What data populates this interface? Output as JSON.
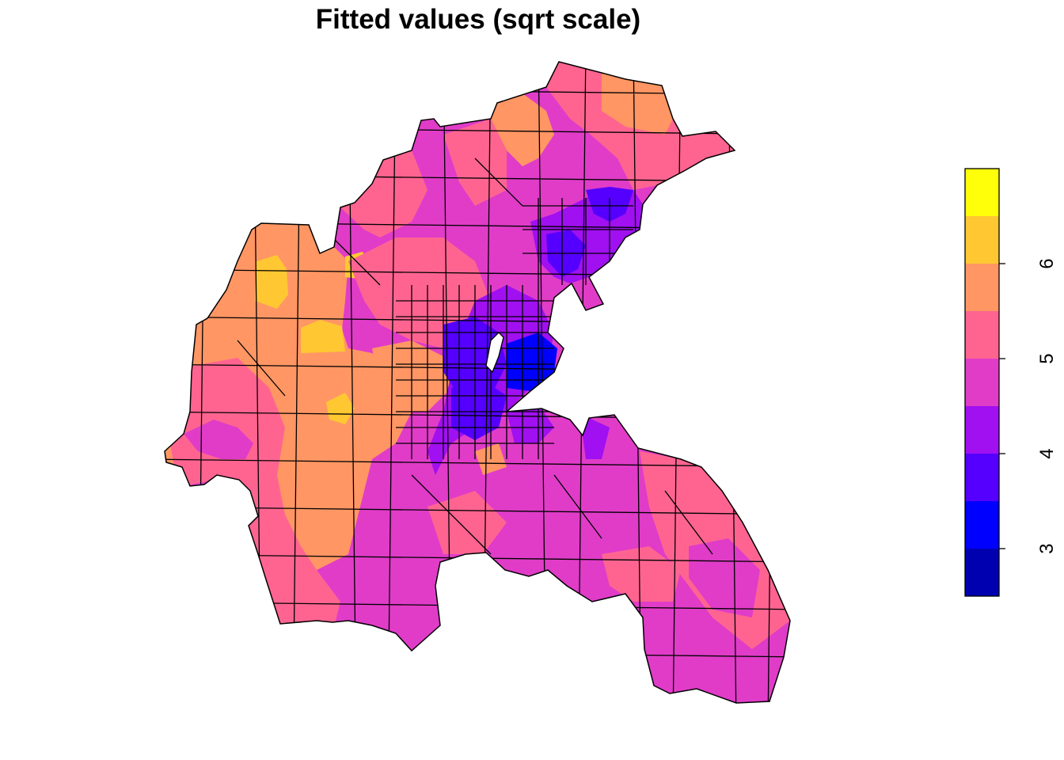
{
  "title": "Fitted values (sqrt scale)",
  "legend": {
    "scale": "sqrt",
    "min": 2.5,
    "max": 7.0,
    "breaks": [
      2.5,
      3.0,
      3.5,
      4.0,
      4.5,
      5.0,
      5.5,
      6.0,
      6.5,
      7.0
    ],
    "colors": [
      "#0000B0",
      "#0000FF",
      "#5500FF",
      "#A010F0",
      "#E03CC8",
      "#FF6491",
      "#FF9664",
      "#FFC832",
      "#FFFF0A"
    ],
    "ticks": [
      {
        "value": 3,
        "label": "3"
      },
      {
        "value": 4,
        "label": "4"
      },
      {
        "value": 5,
        "label": "5"
      },
      {
        "value": 6,
        "label": "6"
      }
    ]
  },
  "map": {
    "region_colors": {
      "yellow": "#FFC832",
      "orange": "#FF9664",
      "pink": "#FF6491",
      "magenta": "#E03CC8",
      "purple": "#A010F0",
      "violet": "#5500FF",
      "blue": "#0000FF"
    },
    "outline_color": "#000000"
  }
}
